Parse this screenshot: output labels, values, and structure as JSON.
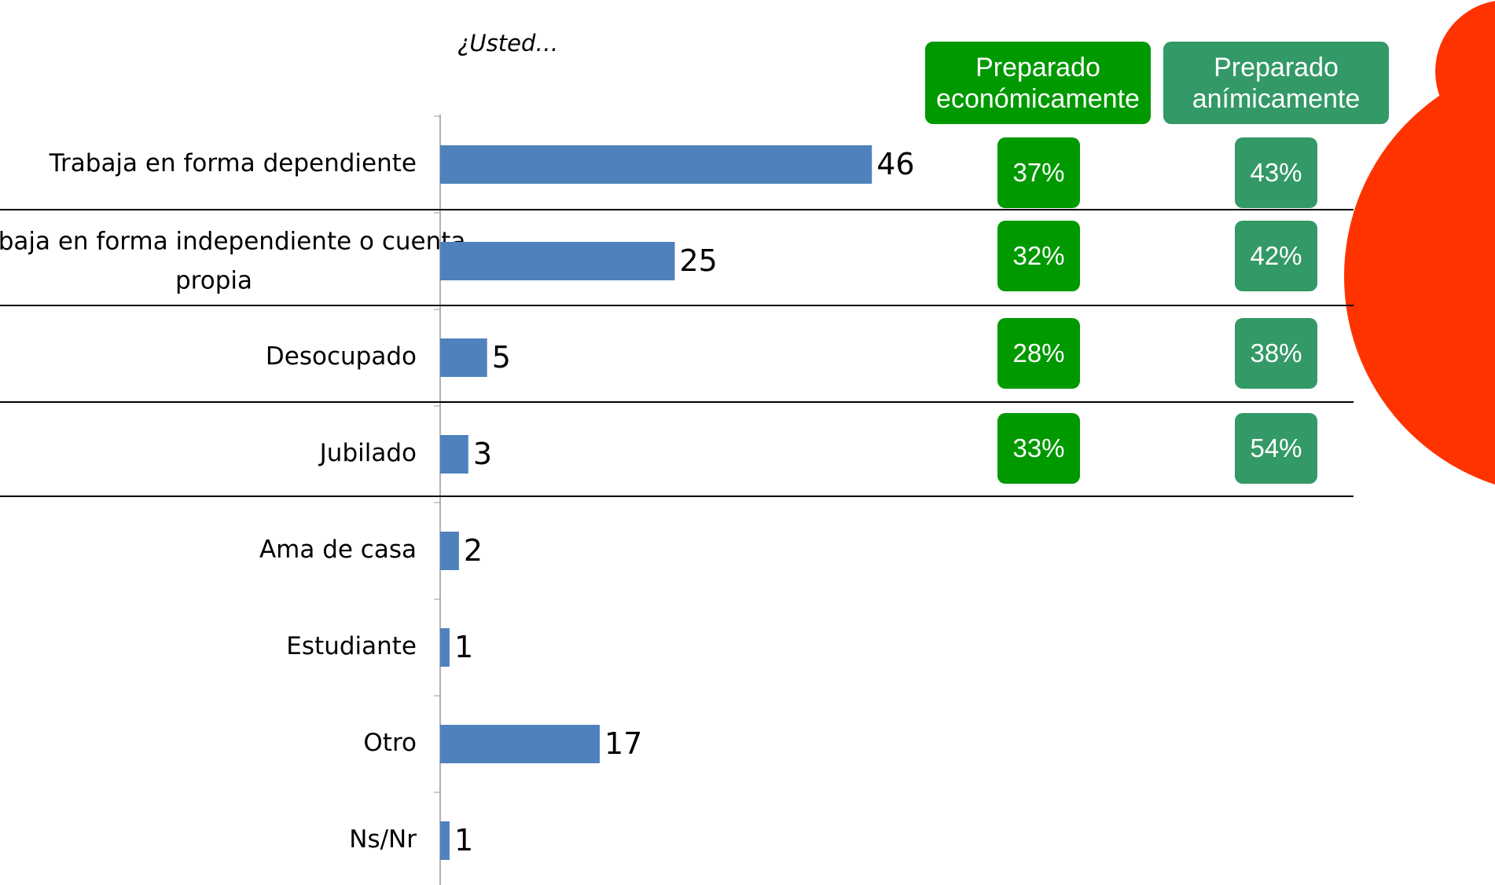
{
  "chart_data": {
    "type": "bar",
    "orientation": "horizontal",
    "subtitle": "¿Usted…",
    "categories": [
      "Trabaja en forma dependiente",
      "Trabaja en forma independiente o cuenta propia",
      "Desocupado",
      "Jubilado",
      "Ama de casa",
      "Estudiante",
      "Otro",
      "Ns/Nr"
    ],
    "values": [
      46,
      25,
      5,
      3,
      2,
      1,
      17,
      1
    ],
    "color": "#4f81bd",
    "xlim": [
      0,
      50
    ]
  },
  "side_table": {
    "headers": [
      "Preparado económicamente",
      "Preparado anímicamente"
    ],
    "rows": [
      [
        "37%",
        "43%"
      ],
      [
        "32%",
        "42%"
      ],
      [
        "28%",
        "38%"
      ],
      [
        "33%",
        "54%"
      ]
    ]
  }
}
